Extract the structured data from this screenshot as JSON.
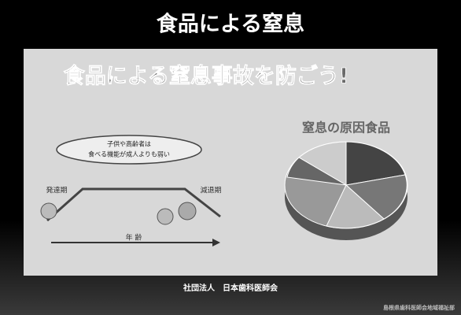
{
  "header": {
    "title": "食品による窒息"
  },
  "slide_image": {
    "headline": "食品による窒息事故を防ごう!",
    "left_panel": {
      "bubble_lines": [
        "子供や高齢者は",
        "食べる機能が成人よりも弱い"
      ],
      "stage_left": "発達期",
      "stage_right": "減退期",
      "axis_label": "年 齢"
    },
    "right_panel": {
      "title": "窒息の原因食品"
    }
  },
  "caption": "社団法人　日本歯科医師会",
  "footer": "島根県歯科医師会地域福祉部"
}
